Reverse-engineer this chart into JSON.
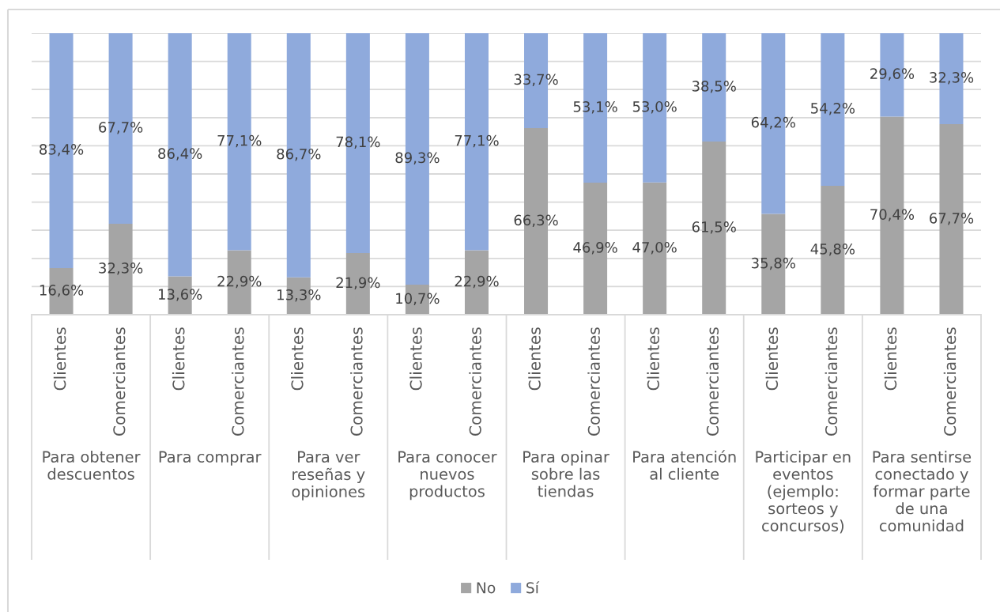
{
  "chart_data": {
    "type": "bar",
    "stacked": true,
    "categories": [
      "Clientes",
      "Comerciantes",
      "Clientes",
      "Comerciantes",
      "Clientes",
      "Comerciantes",
      "Clientes",
      "Comerciantes",
      "Clientes",
      "Comerciantes",
      "Clientes",
      "Comerciantes",
      "Clientes",
      "Comerciantes",
      "Clientes",
      "Comerciantes"
    ],
    "ylim": [
      0,
      100
    ],
    "yticks": [
      {
        "value": 0,
        "label": null
      },
      {
        "value": 10,
        "label": null
      },
      {
        "value": 20,
        "label": null
      },
      {
        "value": 30,
        "label": null
      },
      {
        "value": 40,
        "label": null
      },
      {
        "value": 50,
        "label": null
      },
      {
        "value": 60,
        "label": null
      },
      {
        "value": 70,
        "label": null
      },
      {
        "value": 80,
        "label": null
      },
      {
        "value": 90,
        "label": null
      },
      {
        "value": 100,
        "label": null
      }
    ],
    "grid": "y",
    "tick_labels": "x",
    "legend": "bottom",
    "series": [
      {
        "name": "No",
        "color": "#a5a5a5",
        "values": [
          16.6,
          32.3,
          13.6,
          22.9,
          13.3,
          21.9,
          10.7,
          22.9,
          66.3,
          46.9,
          47.0,
          61.5,
          35.8,
          45.8,
          70.4,
          67.7
        ],
        "value_labels": [
          "16,6%",
          "32,3%",
          "13,6%",
          "22,9%",
          "13,3%",
          "21,9%",
          "10,7%",
          "22,9%",
          "66,3%",
          "46,9%",
          "47,0%",
          "61,5%",
          "35,8%",
          "45,8%",
          "70,4%",
          "67,7%"
        ]
      },
      {
        "name": "Sí",
        "color": "#8faadc",
        "values": [
          83.4,
          67.7,
          86.4,
          77.1,
          86.7,
          78.1,
          89.3,
          77.1,
          33.7,
          53.1,
          53.0,
          38.5,
          64.2,
          54.2,
          29.6,
          32.3
        ],
        "value_labels": [
          "83,4%",
          "67,7%",
          "86,4%",
          "77,1%",
          "86,7%",
          "78,1%",
          "89,3%",
          "77,1%",
          "33,7%",
          "53,1%",
          "53,0%",
          "38,5%",
          "64,2%",
          "54,2%",
          "29,6%",
          "32,3%"
        ]
      }
    ],
    "annotations": [
      "Para obtener\ndescuentos",
      "Para comprar",
      "Para ver\nreseñas y\nopiniones",
      "Para conocer\nnuevos\nproductos",
      "Para opinar\nsobre las\ntiendas",
      "Para atención\nal cliente",
      "Participar en\neventos\n(ejemplo:\nsorteos y\nconcursos)",
      "Para sentirse\nconectado y\nformar parte\nde una\ncomunidad"
    ]
  }
}
